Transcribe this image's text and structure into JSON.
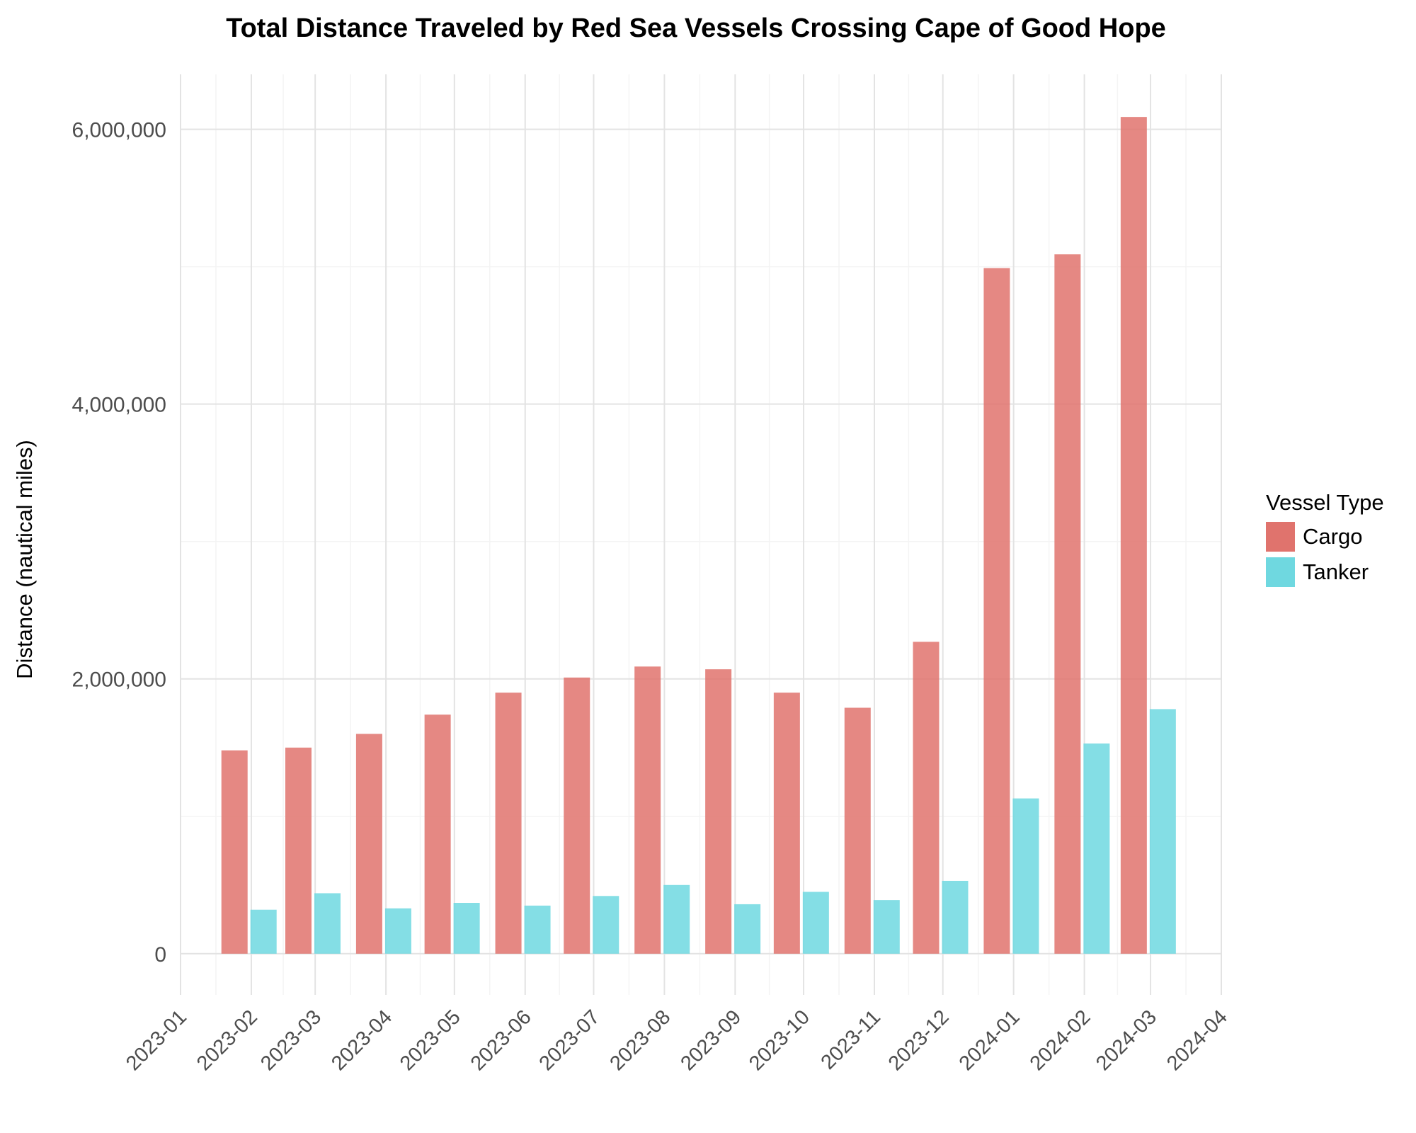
{
  "chart_data": {
    "type": "bar",
    "title": "Total Distance Traveled by Red Sea Vessels Crossing Cape of Good Hope",
    "xlabel": "",
    "ylabel": "Distance (nautical miles)",
    "x_axis": {
      "type": "date",
      "range": [
        "2023-01",
        "2024-04"
      ],
      "ticks": [
        "2023-01",
        "2023-02",
        "2023-03",
        "2023-04",
        "2023-05",
        "2023-06",
        "2023-07",
        "2023-08",
        "2023-09",
        "2023-10",
        "2023-11",
        "2023-12",
        "2024-01",
        "2024-02",
        "2024-03",
        "2024-04"
      ]
    },
    "y_axis": {
      "range": [
        -300000,
        6400000
      ],
      "ticks": [
        0,
        2000000,
        4000000,
        6000000
      ],
      "tick_labels": [
        "0",
        "2,000,000",
        "4,000,000",
        "6,000,000"
      ]
    },
    "grid": true,
    "legend": {
      "title": "Vessel Type",
      "position": "right"
    },
    "categories": [
      "2023-01-31",
      "2023-02-28",
      "2023-03-31",
      "2023-04-30",
      "2023-05-31",
      "2023-06-30",
      "2023-07-31",
      "2023-08-31",
      "2023-09-30",
      "2023-10-31",
      "2023-11-30",
      "2023-12-31",
      "2024-01-31",
      "2024-02-29"
    ],
    "series": [
      {
        "name": "Cargo",
        "color": "#e0736d",
        "values": [
          1480000,
          1500000,
          1600000,
          1740000,
          1900000,
          2010000,
          2090000,
          2070000,
          1900000,
          1790000,
          2270000,
          4990000,
          5090000,
          6090000
        ]
      },
      {
        "name": "Tanker",
        "color": "#6fd8e0",
        "values": [
          320000,
          440000,
          330000,
          370000,
          350000,
          420000,
          500000,
          360000,
          450000,
          390000,
          530000,
          1130000,
          1530000,
          1780000
        ]
      }
    ]
  }
}
